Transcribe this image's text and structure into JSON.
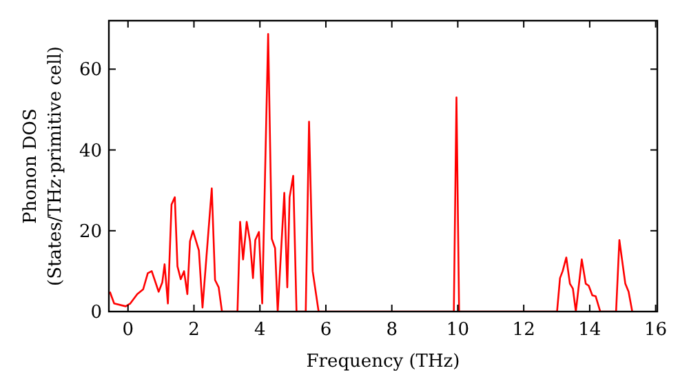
{
  "chart_data": {
    "type": "line",
    "xlabel": "Frequency (THz)",
    "ylabel": "Phonon DOS\n(States/THz·primitive cell)",
    "xlim": [
      -0.58,
      16.05
    ],
    "ylim": [
      0,
      72
    ],
    "xticks": [
      0,
      2,
      4,
      6,
      8,
      10,
      12,
      14,
      16
    ],
    "yticks": [
      0,
      20,
      40,
      60
    ],
    "grid": false,
    "marker": "none",
    "line_style": "solid",
    "series": [
      {
        "color": "#ff0000",
        "x": [
          -0.55,
          -0.42,
          -0.07,
          0.07,
          0.28,
          0.46,
          0.6,
          0.72,
          0.93,
          1.04,
          1.11,
          1.21,
          1.32,
          1.42,
          1.5,
          1.6,
          1.7,
          1.8,
          1.88,
          1.97,
          2.15,
          2.26,
          2.54,
          2.64,
          2.75,
          2.85,
          3.32,
          3.4,
          3.49,
          3.6,
          3.7,
          3.79,
          3.86,
          3.97,
          4.07,
          4.25,
          4.36,
          4.46,
          4.54,
          4.74,
          4.83,
          4.9,
          5.01,
          5.11,
          5.39,
          5.49,
          5.6,
          5.78,
          9.88,
          9.96,
          10.04,
          13.01,
          13.1,
          13.18,
          13.29,
          13.4,
          13.49,
          13.58,
          13.76,
          13.88,
          13.97,
          14.08,
          14.18,
          14.32,
          14.8,
          14.9,
          15.08,
          15.18,
          15.29
        ],
        "values": [
          4.9,
          2,
          1.3,
          2,
          4.3,
          5.5,
          9.5,
          10,
          4.9,
          7.2,
          11.7,
          2,
          26.5,
          28.3,
          11.2,
          8,
          10,
          4.3,
          17.4,
          20,
          15.1,
          1,
          30.5,
          7.8,
          6,
          0,
          0,
          22.2,
          12.9,
          22.2,
          17.4,
          8.3,
          17.7,
          19.7,
          2,
          68.7,
          18,
          15.7,
          0,
          29.4,
          6,
          28.3,
          33.6,
          0,
          0,
          47,
          10,
          0,
          0,
          53,
          0,
          0,
          8.3,
          10,
          13.4,
          6.9,
          5.7,
          0,
          12.9,
          6.9,
          6.4,
          4,
          3.8,
          0,
          0,
          17.7,
          6.9,
          4.9,
          0
        ]
      }
    ]
  }
}
